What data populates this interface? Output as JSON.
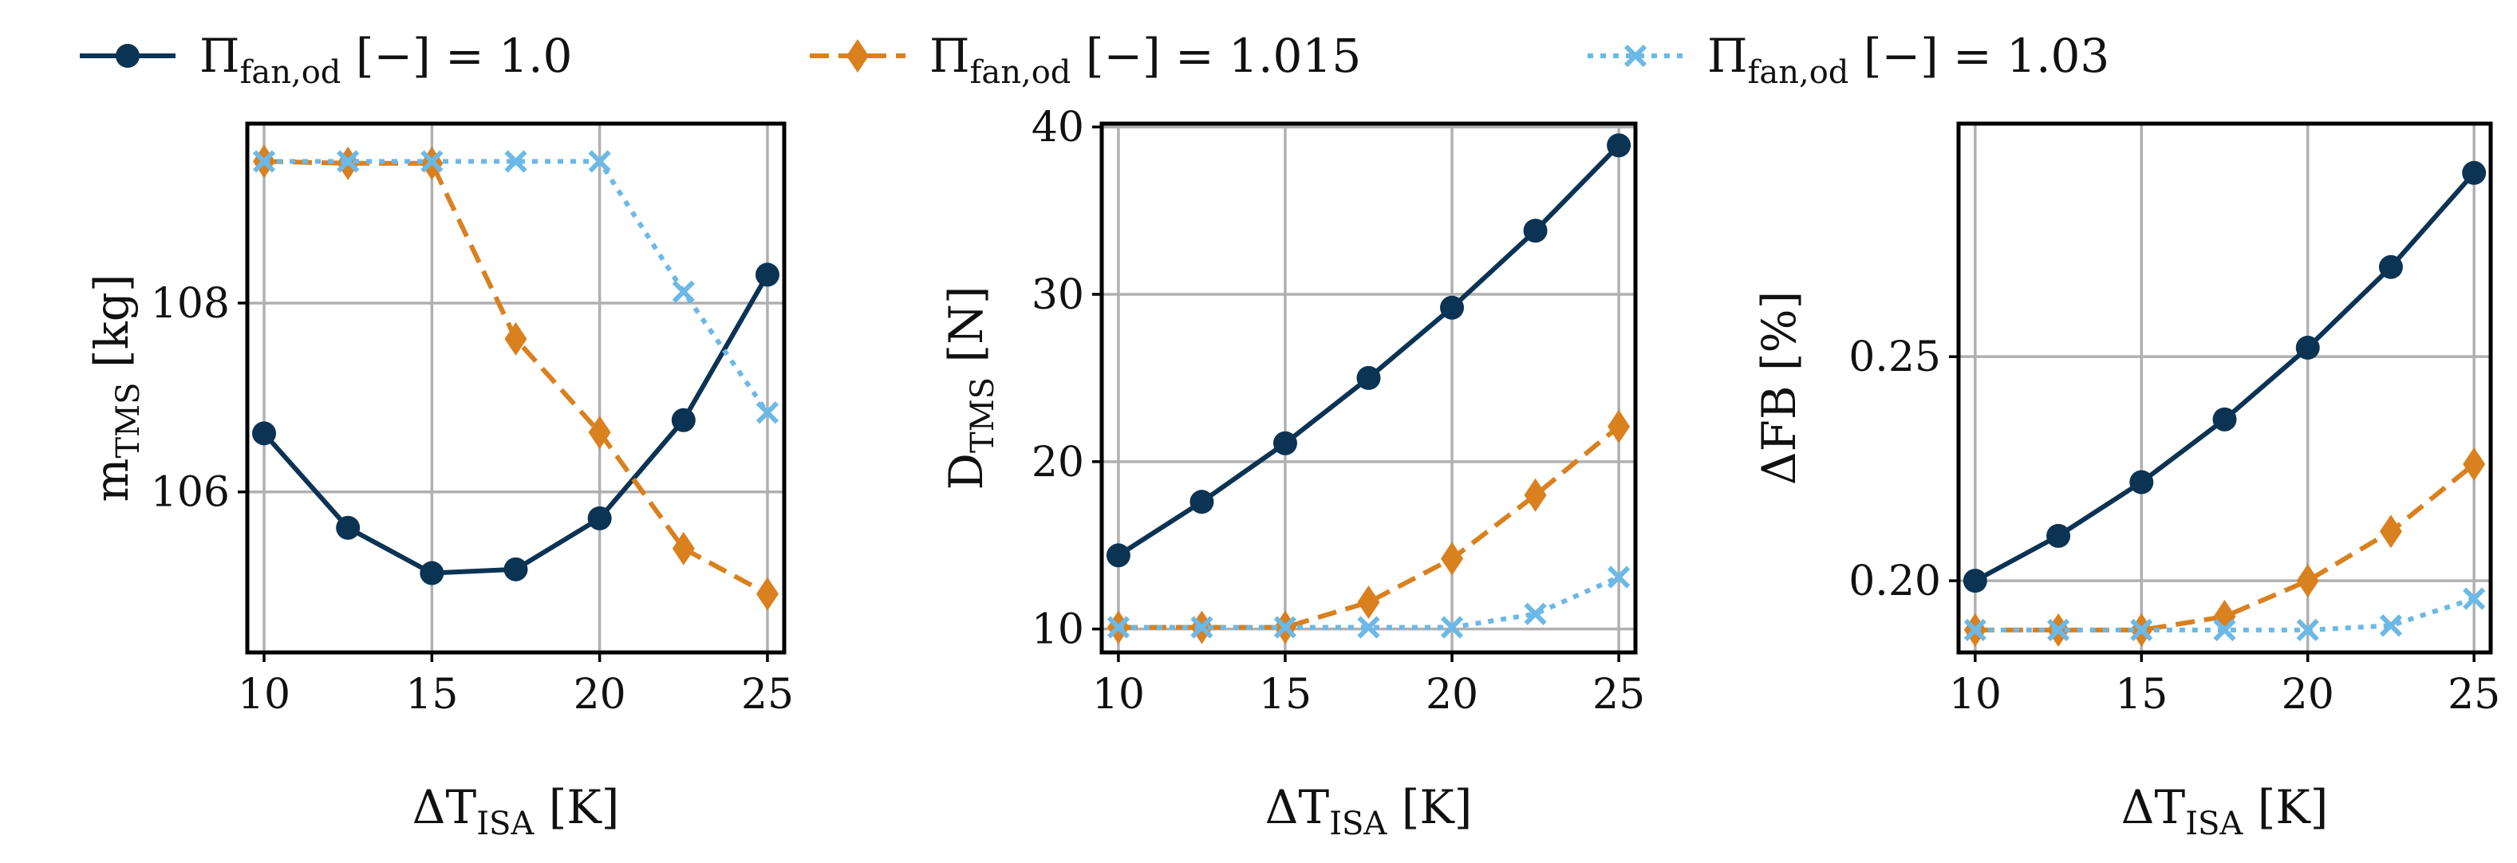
{
  "legend": {
    "items": [
      {
        "symbol": "Π",
        "sub": "fan,od",
        "suffix": " [−] = 1.0"
      },
      {
        "symbol": "Π",
        "sub": "fan,od",
        "suffix": " [−] = 1.015"
      },
      {
        "symbol": "Π",
        "sub": "fan,od",
        "suffix": " [−] = 1.03"
      }
    ],
    "placement": "top"
  },
  "colors": {
    "series_1": "#0b3354",
    "series_2": "#d9801f",
    "series_3": "#6cb8e6",
    "grid": "#b0b0b0",
    "axis": "#000000"
  },
  "chart_data": [
    {
      "type": "line",
      "title": "",
      "xlabel": {
        "main": "ΔT",
        "sub": "ISA",
        "unit": " [K]"
      },
      "ylabel": {
        "main": "m",
        "sub": "TMS",
        "unit": " [kg]"
      },
      "x": [
        10,
        12.5,
        15,
        17.5,
        20,
        22.5,
        25
      ],
      "xlim": [
        9.5,
        25.5
      ],
      "ylim": [
        104.3,
        109.9
      ],
      "xticks": [
        10,
        15,
        20,
        25
      ],
      "xtick_labels": [
        "10",
        "15",
        "20",
        "25"
      ],
      "yticks": [
        106,
        108
      ],
      "ytick_labels": [
        "106",
        "108"
      ],
      "grid": true,
      "series": [
        {
          "name": "Π fan,od [−] = 1.0",
          "marker": "circle",
          "linestyle": "solid",
          "values": [
            106.62,
            105.62,
            105.14,
            105.18,
            105.72,
            106.76,
            108.3
          ]
        },
        {
          "name": "Π fan,od [−] = 1.015",
          "marker": "diamond",
          "linestyle": "dashed",
          "values": [
            109.5,
            109.48,
            109.48,
            107.62,
            106.63,
            105.4,
            104.92
          ]
        },
        {
          "name": "Π fan,od [−] = 1.03",
          "marker": "x",
          "linestyle": "dotted",
          "values": [
            109.5,
            109.5,
            109.5,
            109.5,
            109.5,
            108.12,
            106.84
          ]
        }
      ]
    },
    {
      "type": "line",
      "title": "",
      "xlabel": {
        "main": "ΔT",
        "sub": "ISA",
        "unit": " [K]"
      },
      "ylabel": {
        "main": "D",
        "sub": "TMS",
        "unit": " [N]"
      },
      "x": [
        10,
        12.5,
        15,
        17.5,
        20,
        22.5,
        25
      ],
      "xlim": [
        9.5,
        25.5
      ],
      "ylim": [
        8.6,
        40.2
      ],
      "xticks": [
        10,
        15,
        20,
        25
      ],
      "xtick_labels": [
        "10",
        "15",
        "20",
        "25"
      ],
      "yticks": [
        10,
        20,
        30,
        40
      ],
      "ytick_labels": [
        "10",
        "20",
        "30",
        "40"
      ],
      "grid": true,
      "series": [
        {
          "name": "Π fan,od [−] = 1.0",
          "marker": "circle",
          "linestyle": "solid",
          "values": [
            14.4,
            17.6,
            21.1,
            25.0,
            29.2,
            33.8,
            38.9
          ]
        },
        {
          "name": "Π fan,od [−] = 1.015",
          "marker": "diamond",
          "linestyle": "dashed",
          "values": [
            10.1,
            10.1,
            10.1,
            11.6,
            14.2,
            18.0,
            22.1
          ]
        },
        {
          "name": "Π fan,od [−] = 1.03",
          "marker": "x",
          "linestyle": "dotted",
          "values": [
            10.1,
            10.1,
            10.1,
            10.1,
            10.1,
            10.9,
            13.1
          ]
        }
      ]
    },
    {
      "type": "line",
      "title": "",
      "xlabel": {
        "main": "ΔT",
        "sub": "ISA",
        "unit": " [K]"
      },
      "ylabel": {
        "main": "ΔFB",
        "sub": "",
        "unit": " [%]"
      },
      "x": [
        10,
        12.5,
        15,
        17.5,
        20,
        22.5,
        25
      ],
      "xlim": [
        9.5,
        25.5
      ],
      "ylim": [
        0.184,
        0.302
      ],
      "xticks": [
        10,
        15,
        20,
        25
      ],
      "xtick_labels": [
        "10",
        "15",
        "20",
        "25"
      ],
      "yticks": [
        0.2,
        0.25
      ],
      "ytick_labels": [
        "0.20",
        "0.25"
      ],
      "grid": true,
      "series": [
        {
          "name": "Π fan,od [−] = 1.0",
          "marker": "circle",
          "linestyle": "solid",
          "values": [
            0.2,
            0.21,
            0.222,
            0.236,
            0.252,
            0.27,
            0.291
          ]
        },
        {
          "name": "Π fan,od [−] = 1.015",
          "marker": "diamond",
          "linestyle": "dashed",
          "values": [
            0.189,
            0.189,
            0.189,
            0.192,
            0.2,
            0.211,
            0.226
          ]
        },
        {
          "name": "Π fan,od [−] = 1.03",
          "marker": "x",
          "linestyle": "dotted",
          "values": [
            0.189,
            0.189,
            0.189,
            0.189,
            0.189,
            0.19,
            0.196
          ]
        }
      ]
    }
  ]
}
